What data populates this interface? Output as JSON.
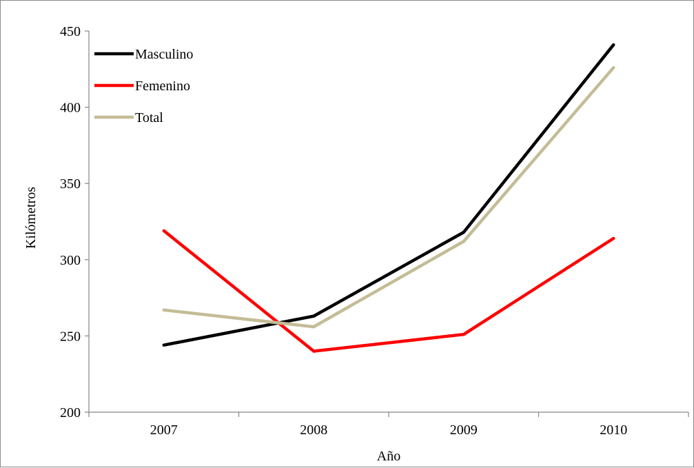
{
  "chart_data": {
    "type": "line",
    "xlabel": "Año",
    "ylabel": "Kilómetros",
    "categories": [
      "2007",
      "2008",
      "2009",
      "2010"
    ],
    "ylim": [
      200,
      450
    ],
    "yticks": [
      200,
      250,
      300,
      350,
      400,
      450
    ],
    "grid": false,
    "legend_position": "top-left",
    "series": [
      {
        "name": "Masculino",
        "color": "#000000",
        "values": [
          244,
          263,
          318,
          441
        ]
      },
      {
        "name": "Femenino",
        "color": "#ff0000",
        "values": [
          319,
          240,
          251,
          314
        ]
      },
      {
        "name": "Total",
        "color": "#c4bc96",
        "values": [
          267,
          256,
          312,
          426
        ]
      }
    ]
  }
}
